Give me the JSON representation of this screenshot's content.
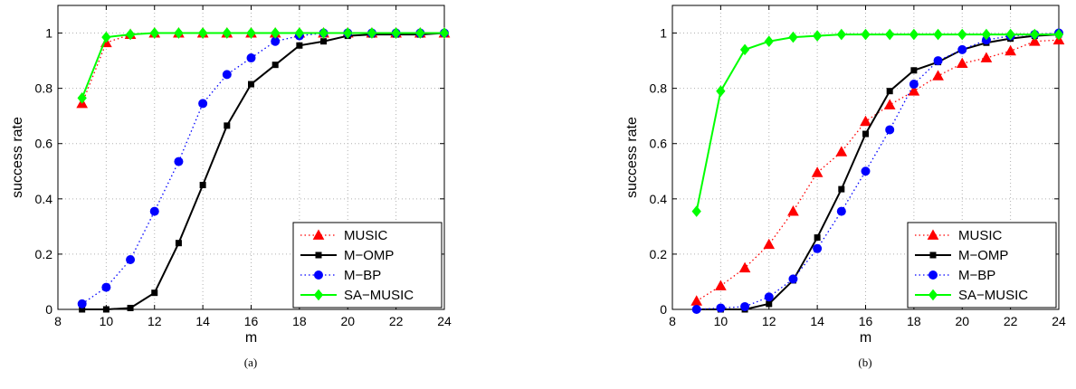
{
  "figure": {
    "captions": [
      "(a)",
      "(b)"
    ]
  },
  "chart_data": [
    {
      "type": "line",
      "xlabel": "m",
      "ylabel": "success rate",
      "xlim": [
        8,
        24
      ],
      "ylim": [
        0,
        1.1
      ],
      "xticks": [
        8,
        10,
        12,
        14,
        16,
        18,
        20,
        22,
        24
      ],
      "yticks": [
        0,
        0.2,
        0.4,
        0.6,
        0.8,
        1
      ],
      "grid": true,
      "legend": "bottom-right",
      "x": [
        9,
        10,
        11,
        12,
        13,
        14,
        15,
        16,
        17,
        18,
        19,
        20,
        21,
        22,
        23,
        24
      ],
      "series": [
        {
          "name": "MUSIC",
          "color": "#ff0000",
          "marker": "triangle",
          "linestyle": "dotted",
          "values": [
            0.745,
            0.965,
            0.995,
            1,
            1,
            1,
            1,
            1,
            1,
            1,
            1,
            1,
            1,
            1,
            1,
            1
          ]
        },
        {
          "name": "M−OMP",
          "color": "#000000",
          "marker": "square",
          "linestyle": "solid",
          "values": [
            0,
            0,
            0.005,
            0.06,
            0.24,
            0.45,
            0.665,
            0.815,
            0.885,
            0.955,
            0.97,
            0.99,
            0.995,
            0.995,
            0.995,
            1
          ]
        },
        {
          "name": "M−BP",
          "color": "#0000ff",
          "marker": "circle",
          "linestyle": "dotted",
          "values": [
            0.02,
            0.08,
            0.18,
            0.355,
            0.535,
            0.745,
            0.85,
            0.91,
            0.97,
            0.99,
            1,
            1,
            1,
            1,
            1,
            1
          ]
        },
        {
          "name": "SA−MUSIC",
          "color": "#00ff00",
          "marker": "diamond",
          "linestyle": "solid",
          "values": [
            0.765,
            0.985,
            0.995,
            1,
            1,
            1,
            1,
            1,
            1,
            1,
            1,
            1,
            1,
            1,
            1,
            1
          ]
        }
      ]
    },
    {
      "type": "line",
      "xlabel": "m",
      "ylabel": "success rate",
      "xlim": [
        8,
        24
      ],
      "ylim": [
        0,
        1.1
      ],
      "xticks": [
        8,
        10,
        12,
        14,
        16,
        18,
        20,
        22,
        24
      ],
      "yticks": [
        0,
        0.2,
        0.4,
        0.6,
        0.8,
        1
      ],
      "grid": true,
      "legend": "bottom-right",
      "x": [
        9,
        10,
        11,
        12,
        13,
        14,
        15,
        16,
        17,
        18,
        19,
        20,
        21,
        22,
        23,
        24
      ],
      "series": [
        {
          "name": "MUSIC",
          "color": "#ff0000",
          "marker": "triangle",
          "linestyle": "dotted",
          "values": [
            0.03,
            0.085,
            0.15,
            0.235,
            0.355,
            0.495,
            0.57,
            0.68,
            0.74,
            0.79,
            0.845,
            0.89,
            0.91,
            0.935,
            0.97,
            0.975
          ]
        },
        {
          "name": "M−OMP",
          "color": "#000000",
          "marker": "square",
          "linestyle": "solid",
          "values": [
            0,
            0,
            0,
            0.02,
            0.105,
            0.26,
            0.435,
            0.635,
            0.79,
            0.865,
            0.895,
            0.94,
            0.965,
            0.98,
            0.99,
            0.995
          ]
        },
        {
          "name": "M−BP",
          "color": "#0000ff",
          "marker": "circle",
          "linestyle": "dotted",
          "values": [
            0,
            0.005,
            0.01,
            0.045,
            0.11,
            0.22,
            0.355,
            0.5,
            0.65,
            0.815,
            0.9,
            0.94,
            0.975,
            0.99,
            0.995,
            1
          ]
        },
        {
          "name": "SA−MUSIC",
          "color": "#00ff00",
          "marker": "diamond",
          "linestyle": "solid",
          "values": [
            0.355,
            0.79,
            0.94,
            0.97,
            0.985,
            0.99,
            0.995,
            0.995,
            0.995,
            0.995,
            0.995,
            0.995,
            0.995,
            0.995,
            0.995,
            0.995
          ]
        }
      ]
    }
  ]
}
